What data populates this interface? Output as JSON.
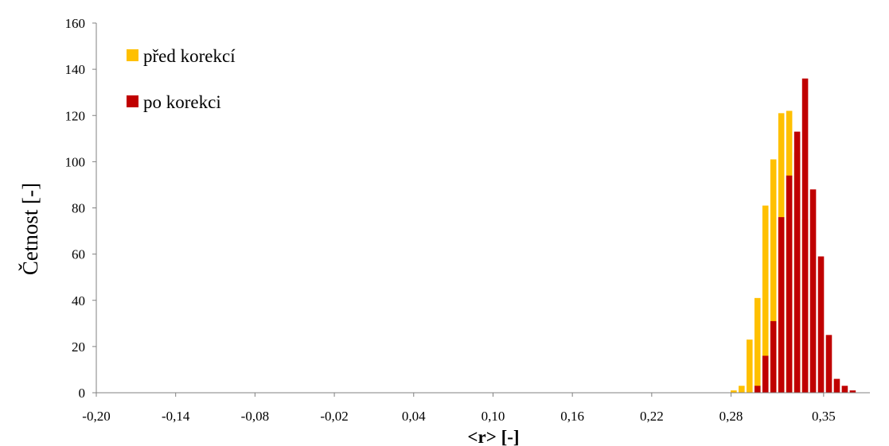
{
  "chart_data": {
    "type": "bar",
    "xlabel": "<r> [-]",
    "ylabel": "Četnost [-]",
    "ylim": [
      0,
      160
    ],
    "xlim": [
      -0.2,
      0.385
    ],
    "yticks": [
      0,
      20,
      40,
      60,
      80,
      100,
      120,
      140,
      160
    ],
    "xtick_values": [
      -0.2,
      -0.14,
      -0.08,
      -0.02,
      0.04,
      0.1,
      0.16,
      0.22,
      0.28,
      0.35
    ],
    "xtick_labels": [
      "-0,20",
      "-0,14",
      "-0,08",
      "-0,02",
      "0,04",
      "0,10",
      "0,16",
      "0,22",
      "0,28",
      "0,35"
    ],
    "grid": false,
    "legend_position": "top-left",
    "bin_width": 0.006,
    "series": [
      {
        "name": "před korekcí",
        "color": "#FFC000",
        "x": [
          0.282,
          0.288,
          0.294,
          0.3,
          0.306,
          0.312,
          0.318,
          0.324,
          0.33,
          0.336
        ],
        "values": [
          1,
          3,
          23,
          41,
          81,
          101,
          121,
          122,
          104,
          75
        ]
      },
      {
        "name": "po korekci",
        "color": "#C00000",
        "x": [
          0.3,
          0.306,
          0.312,
          0.318,
          0.324,
          0.33,
          0.336,
          0.342,
          0.348,
          0.354,
          0.36,
          0.366,
          0.372
        ],
        "values": [
          3,
          16,
          31,
          76,
          94,
          113,
          136,
          88,
          59,
          25,
          6,
          3,
          1
        ]
      }
    ]
  }
}
